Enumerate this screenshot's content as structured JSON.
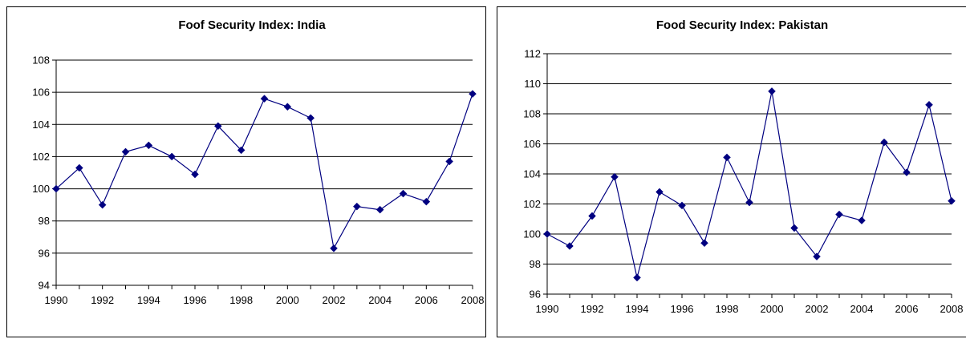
{
  "chart_data": [
    {
      "type": "line",
      "title": "Foof Security Index: India",
      "xlabel": "",
      "ylabel": "",
      "x": [
        1990,
        1991,
        1992,
        1993,
        1994,
        1995,
        1996,
        1997,
        1998,
        1999,
        2000,
        2001,
        2002,
        2003,
        2004,
        2005,
        2006,
        2007,
        2008
      ],
      "x_tick_labels": [
        "1990",
        "1992",
        "1994",
        "1996",
        "1998",
        "2000",
        "2002",
        "2004",
        "2006",
        "2008"
      ],
      "y_tick_labels": [
        "94",
        "96",
        "98",
        "100",
        "102",
        "104",
        "106",
        "108"
      ],
      "ylim": [
        94,
        108
      ],
      "xlim": [
        1990,
        2008
      ],
      "grid": "horizontal",
      "legend": "none",
      "series": [
        {
          "values": [
            100.0,
            101.3,
            99.0,
            102.3,
            102.7,
            102.0,
            100.9,
            103.9,
            102.4,
            105.6,
            105.1,
            104.4,
            96.3,
            98.9,
            98.7,
            99.7,
            99.2,
            101.7,
            105.9
          ],
          "color": "#000080",
          "marker": "diamond"
        }
      ]
    },
    {
      "type": "line",
      "title": "Food Security Index: Pakistan",
      "xlabel": "",
      "ylabel": "",
      "x": [
        1990,
        1991,
        1992,
        1993,
        1994,
        1995,
        1996,
        1997,
        1998,
        1999,
        2000,
        2001,
        2002,
        2003,
        2004,
        2005,
        2006,
        2007,
        2008
      ],
      "x_tick_labels": [
        "1990",
        "1992",
        "1994",
        "1996",
        "1998",
        "2000",
        "2002",
        "2004",
        "2006",
        "2008"
      ],
      "y_tick_labels": [
        "96",
        "98",
        "100",
        "102",
        "104",
        "106",
        "108",
        "110",
        "112"
      ],
      "ylim": [
        96,
        112
      ],
      "xlim": [
        1990,
        2008
      ],
      "grid": "horizontal",
      "legend": "none",
      "series": [
        {
          "values": [
            100.0,
            99.2,
            101.2,
            103.8,
            97.1,
            102.8,
            101.9,
            99.4,
            105.1,
            102.1,
            109.5,
            100.4,
            98.5,
            101.3,
            100.9,
            106.1,
            104.1,
            108.6,
            102.2
          ],
          "color": "#000080",
          "marker": "diamond"
        }
      ]
    }
  ]
}
